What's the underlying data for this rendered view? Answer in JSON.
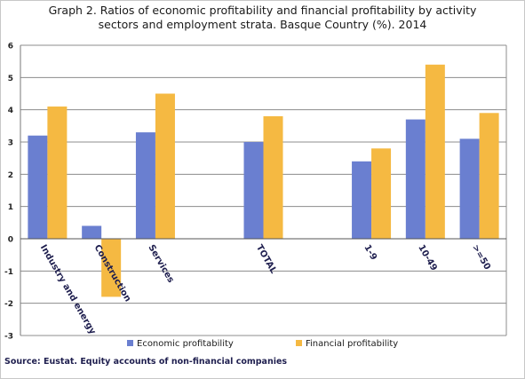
{
  "title_line1": "Graph 2. Ratios of  economic profitability and financial profitability by activity",
  "title_line2": "sectors and employment strata. Basque Country (%). 2014",
  "source": "Source: Eustat. Equity accounts of non-financial companies",
  "colors": {
    "economic": "#6a7fd0",
    "financial": "#f5b942",
    "grid": "#8c8c8c"
  },
  "chart_data": {
    "type": "bar",
    "title": "Graph 2. Ratios of  economic profitability and financial profitability by activity sectors and employment strata. Basque Country (%). 2014",
    "categories": [
      "Industry and energy",
      "Construction",
      "Services",
      "",
      "TOTAL",
      "",
      "1-9",
      "10-49",
      ">=50"
    ],
    "series": [
      {
        "name": "Economic profitability",
        "values": [
          3.2,
          0.4,
          3.3,
          null,
          3.0,
          null,
          2.4,
          3.7,
          3.1
        ]
      },
      {
        "name": "Financial profitability",
        "values": [
          4.1,
          -1.8,
          4.5,
          null,
          3.8,
          null,
          2.8,
          5.4,
          3.9
        ]
      }
    ],
    "ylim": [
      -3,
      6
    ],
    "yticks": [
      "6",
      "5",
      "4",
      "3",
      "2",
      "1",
      "0",
      "-1",
      "-2",
      "-3"
    ],
    "grid": true,
    "legend": "bottom"
  }
}
